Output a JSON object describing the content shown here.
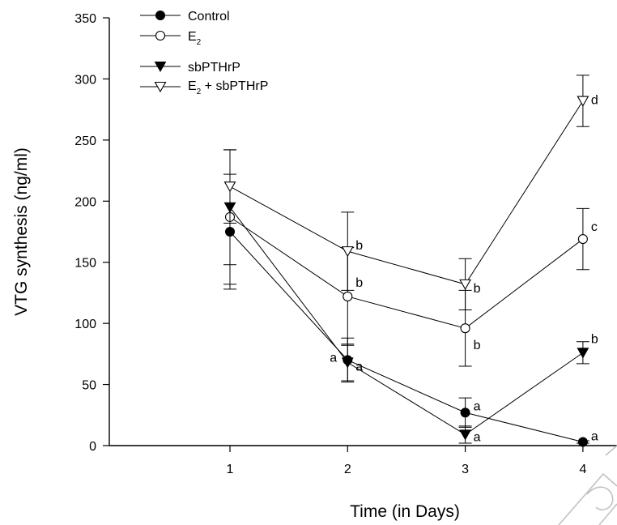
{
  "chart_data": {
    "type": "line",
    "title": "",
    "xlabel": "Time (in Days)",
    "ylabel": "VTG synthesis (ng/ml)",
    "x": [
      1,
      2,
      3,
      4
    ],
    "x_ticks": [
      "1",
      "2",
      "3",
      "4"
    ],
    "ylim": [
      0,
      350
    ],
    "y_ticks": [
      "0",
      "50",
      "100",
      "150",
      "200",
      "250",
      "300",
      "350"
    ],
    "grid": false,
    "legend_position": "top-left",
    "series": [
      {
        "name": "Control",
        "marker": "filled-circle",
        "values": [
          175,
          70,
          27,
          3
        ],
        "errors": [
          47,
          18,
          12,
          1
        ],
        "sig_labels": [
          "",
          "a",
          "a",
          "a"
        ]
      },
      {
        "name": "E2",
        "name_main": "E",
        "name_sub": "2",
        "marker": "open-circle",
        "values": [
          187,
          122,
          96,
          169
        ],
        "errors": [
          55,
          40,
          31,
          25
        ],
        "sig_labels": [
          "",
          "b",
          "b",
          "c"
        ]
      },
      {
        "name": "sbPTHrP",
        "marker": "filled-triangle-down",
        "values": [
          195,
          68,
          9,
          76
        ],
        "errors": [
          47,
          15,
          7,
          9
        ],
        "sig_labels": [
          "",
          "a",
          "a",
          "b"
        ]
      },
      {
        "name": "E2 + sbPTHrP",
        "name_main": "E",
        "name_sub": "2",
        "name_rest": " + sbPTHrP",
        "marker": "open-triangle-down",
        "values": [
          212,
          159,
          132,
          282
        ],
        "errors": [
          30,
          32,
          21,
          21
        ],
        "sig_labels": [
          "",
          "b",
          "b",
          "d"
        ]
      }
    ]
  },
  "colors": {
    "line": "#000000",
    "background": "#ffffff",
    "watermark": "#bbbbbb"
  },
  "decorations": {
    "watermark": "stamp-watermark-icon"
  }
}
